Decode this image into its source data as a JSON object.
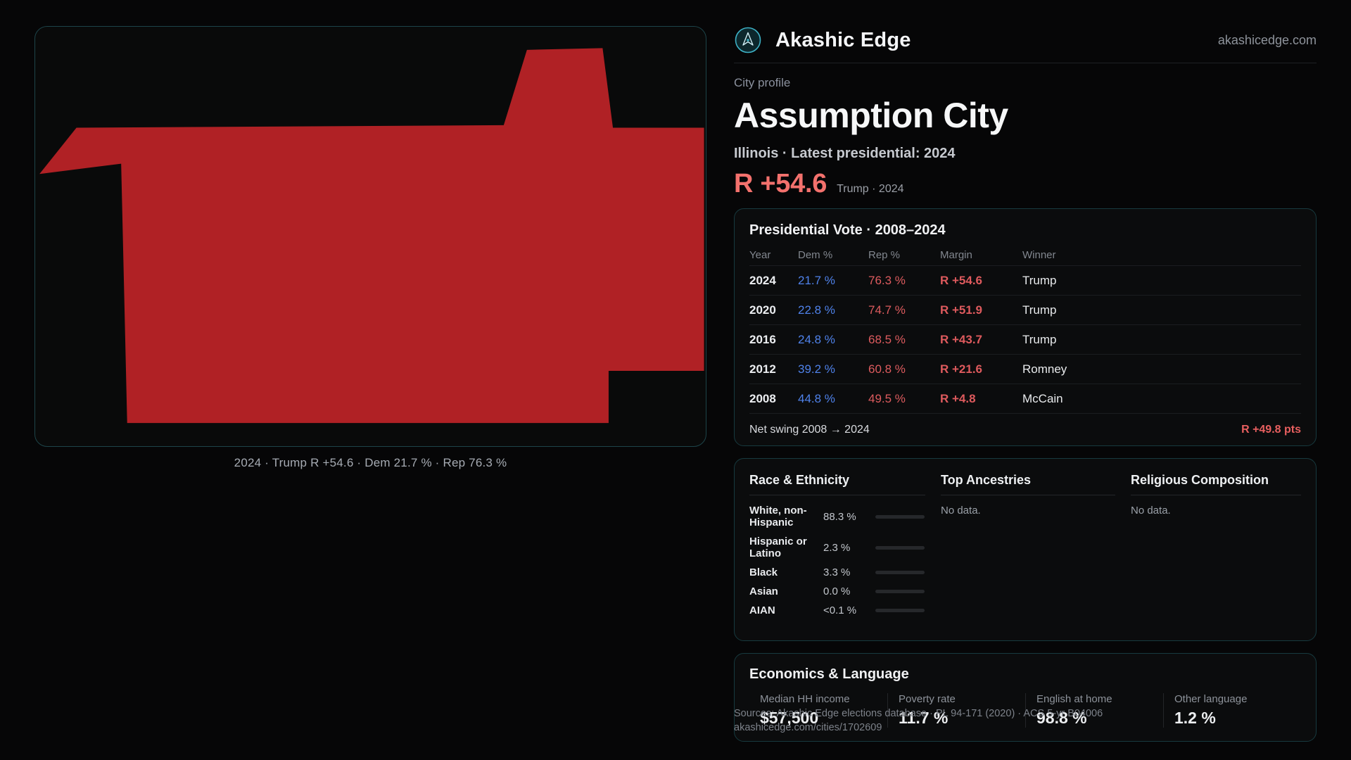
{
  "header": {
    "brand": "Akashic Edge",
    "domain": "akashicedge.com",
    "logo_color": "#3db0c4"
  },
  "profile": {
    "eyebrow": "City profile",
    "title": "Assumption City",
    "subtitle": "Illinois · Latest presidential: 2024",
    "headline_margin": "R +54.6",
    "headline_note": "Trump · 2024"
  },
  "map": {
    "caption": "2024 · Trump R +54.6 · Dem 21.7 % · Rep 76.3 %",
    "shape_color": "#b02125"
  },
  "presidential": {
    "title": "Presidential Vote · 2008–2024",
    "columns": [
      "Year",
      "Dem %",
      "Rep %",
      "Margin",
      "Winner"
    ],
    "rows": [
      {
        "year": "2024",
        "dem": "21.7 %",
        "rep": "76.3 %",
        "margin": "R +54.6",
        "winner": "Trump"
      },
      {
        "year": "2020",
        "dem": "22.8 %",
        "rep": "74.7 %",
        "margin": "R +51.9",
        "winner": "Trump"
      },
      {
        "year": "2016",
        "dem": "24.8 %",
        "rep": "68.5 %",
        "margin": "R +43.7",
        "winner": "Trump"
      },
      {
        "year": "2012",
        "dem": "39.2 %",
        "rep": "60.8 %",
        "margin": "R +21.6",
        "winner": "Romney"
      },
      {
        "year": "2008",
        "dem": "44.8 %",
        "rep": "49.5 %",
        "margin": "R +4.8",
        "winner": "McCain"
      }
    ],
    "net_swing_label": "Net swing 2008 → 2024",
    "net_swing_value": "R +49.8 pts"
  },
  "demographics": {
    "race_title": "Race & Ethnicity",
    "ancestries_title": "Top Ancestries",
    "religion_title": "Religious Composition",
    "no_data": "No data.",
    "race_rows": [
      {
        "label": "White, non-Hispanic",
        "value": "88.3 %",
        "pct": 88.3,
        "bar_color": "#b7bcc4"
      },
      {
        "label": "Hispanic or Latino",
        "value": "2.3 %",
        "pct": 2.3,
        "bar_color": "#cd7f45"
      },
      {
        "label": "Black",
        "value": "3.3 %",
        "pct": 3.3,
        "bar_color": "#5f6fd8"
      },
      {
        "label": "Asian",
        "value": "0.0 %",
        "pct": 0.0,
        "bar_color": "#b7bcc4"
      },
      {
        "label": "AIAN",
        "value": "<0.1 %",
        "pct": 0.1,
        "bar_color": "#8f959d"
      }
    ]
  },
  "economics": {
    "title": "Economics & Language",
    "stats": [
      {
        "label": "Median HH income",
        "value": "$57,500"
      },
      {
        "label": "Poverty rate",
        "value": "11.7 %"
      },
      {
        "label": "English at home",
        "value": "98.8 %"
      },
      {
        "label": "Other language",
        "value": "1.2 %"
      }
    ]
  },
  "footer": {
    "sources": "Sources: Akashic Edge elections database · PL 94-171 (2020) · ACS 5-yr B04006",
    "permalink": "akashicedge.com/cities/1702609"
  }
}
